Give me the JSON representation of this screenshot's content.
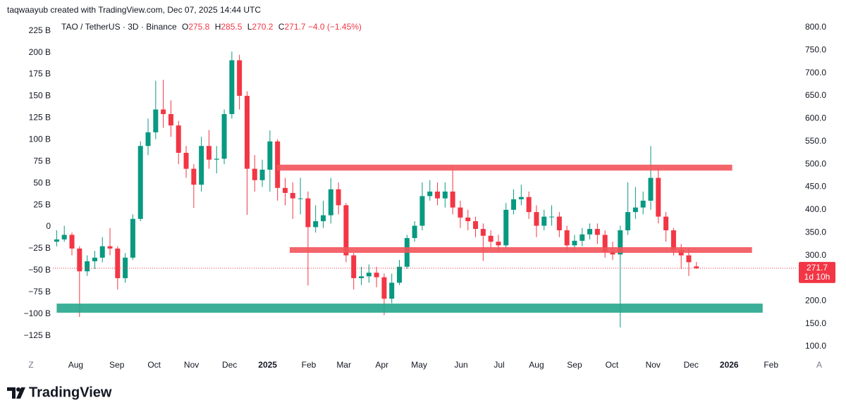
{
  "header": {
    "credit": "taqwaayub created with TradingView.com, Dec 07, 2025 14:44 UTC"
  },
  "chart_data": {
    "type": "candlestick",
    "legend": {
      "symbol": "TAO / TetherUS · 3D · Binance",
      "labels": [
        "O",
        "H",
        "L",
        "C"
      ],
      "values": [
        275.8,
        285.5,
        270.2,
        271.7
      ],
      "change": -4.0,
      "change_label": "−4.0",
      "change_pct": -1.45,
      "change_pct_label": "(−1.45%)"
    },
    "countdown": "1d 10h",
    "up_color": "#089981",
    "down_color": "#f23645",
    "open": [
      330,
      335,
      345,
      315,
      265,
      287,
      295,
      320,
      315,
      250,
      295,
      380,
      540,
      570,
      620,
      610,
      585,
      525,
      490,
      455,
      540,
      510,
      512,
      610,
      728,
      650,
      490,
      465,
      488,
      550,
      448,
      437,
      425,
      425,
      362,
      375,
      388,
      445,
      410,
      300,
      250,
      254,
      262,
      252,
      205,
      240,
      275,
      338,
      365,
      430,
      440,
      425,
      440,
      405,
      383,
      375,
      358,
      343,
      330,
      322,
      400,
      423,
      428,
      395,
      365,
      385,
      385,
      355,
      322,
      332,
      346,
      358,
      345,
      308,
      302,
      355,
      395,
      405,
      420,
      470,
      385,
      355,
      312,
      300,
      275.8
    ],
    "high": [
      355,
      365,
      350,
      320,
      300,
      310,
      340,
      360,
      320,
      305,
      390,
      550,
      600,
      683,
      685,
      640,
      595,
      540,
      500,
      560,
      575,
      540,
      620,
      747,
      740,
      660,
      520,
      510,
      574,
      555,
      470,
      460,
      470,
      440,
      410,
      420,
      470,
      460,
      415,
      305,
      275,
      280,
      275,
      260,
      260,
      290,
      345,
      375,
      460,
      465,
      460,
      460,
      497,
      420,
      400,
      385,
      370,
      355,
      345,
      415,
      445,
      455,
      440,
      410,
      400,
      410,
      395,
      365,
      345,
      360,
      370,
      370,
      355,
      330,
      365,
      460,
      450,
      440,
      540,
      495,
      395,
      360,
      325,
      315,
      285.5
    ],
    "low": [
      320,
      330,
      300,
      165,
      255,
      270,
      285,
      300,
      225,
      240,
      290,
      375,
      520,
      555,
      580,
      560,
      500,
      470,
      404,
      440,
      490,
      480,
      500,
      600,
      620,
      389,
      440,
      450,
      440,
      420,
      410,
      380,
      390,
      234,
      350,
      360,
      370,
      390,
      285,
      225,
      235,
      240,
      230,
      169,
      195,
      235,
      270,
      330,
      355,
      420,
      410,
      405,
      390,
      360,
      355,
      340,
      288,
      315,
      310,
      315,
      390,
      410,
      380,
      340,
      355,
      365,
      340,
      310,
      310,
      320,
      335,
      325,
      295,
      290,
      142,
      345,
      380,
      390,
      400,
      370,
      330,
      300,
      270,
      255,
      270.2
    ],
    "close": [
      335,
      345,
      315,
      265,
      287,
      295,
      320,
      315,
      250,
      295,
      380,
      540,
      570,
      620,
      610,
      585,
      525,
      490,
      455,
      540,
      510,
      512,
      610,
      728,
      650,
      490,
      465,
      488,
      550,
      448,
      437,
      425,
      425,
      362,
      375,
      388,
      445,
      410,
      300,
      250,
      254,
      262,
      252,
      205,
      240,
      275,
      338,
      365,
      430,
      440,
      425,
      440,
      405,
      383,
      375,
      358,
      343,
      330,
      322,
      400,
      423,
      428,
      395,
      365,
      385,
      385,
      355,
      322,
      332,
      346,
      358,
      345,
      308,
      302,
      355,
      395,
      405,
      420,
      470,
      385,
      355,
      312,
      300,
      285,
      271.7
    ],
    "xlim": [
      -0.5,
      96.7
    ],
    "xticks": [
      {
        "value": 2.5,
        "label": "Aug"
      },
      {
        "value": 7.9,
        "label": "Sep"
      },
      {
        "value": 12.8,
        "label": "Oct"
      },
      {
        "value": 17.7,
        "label": "Nov"
      },
      {
        "value": 22.7,
        "label": "Dec"
      },
      {
        "value": 27.7,
        "label": "2025"
      },
      {
        "value": 33.1,
        "label": "Feb"
      },
      {
        "value": 37.7,
        "label": "Mar"
      },
      {
        "value": 42.7,
        "label": "Apr"
      },
      {
        "value": 47.6,
        "label": "May"
      },
      {
        "value": 53.1,
        "label": "Jun"
      },
      {
        "value": 58.1,
        "label": "Jul"
      },
      {
        "value": 63.0,
        "label": "Aug"
      },
      {
        "value": 68.0,
        "label": "Sep"
      },
      {
        "value": 72.9,
        "label": "Oct"
      },
      {
        "value": 78.3,
        "label": "Nov"
      },
      {
        "value": 83.3,
        "label": "Dec"
      },
      {
        "value": 88.3,
        "label": "2026"
      },
      {
        "value": 93.8,
        "label": "Feb"
      }
    ],
    "ylim": [
      80,
      821.6
    ],
    "yticks": [
      {
        "value": 800,
        "label": "800.0"
      },
      {
        "value": 750,
        "label": "750.0"
      },
      {
        "value": 700,
        "label": "700.0"
      },
      {
        "value": 650,
        "label": "650.0"
      },
      {
        "value": 600,
        "label": "600.0"
      },
      {
        "value": 550,
        "label": "550.0"
      },
      {
        "value": 500,
        "label": "500.0"
      },
      {
        "value": 450,
        "label": "450.0"
      },
      {
        "value": 400,
        "label": "400.0"
      },
      {
        "value": 350,
        "label": "350.0"
      },
      {
        "value": 300,
        "label": "300.0"
      },
      {
        "value": 250,
        "label": "250.0"
      },
      {
        "value": 200,
        "label": "200.0"
      },
      {
        "value": 150,
        "label": "150.0"
      },
      {
        "value": 100,
        "label": "100.0"
      }
    ],
    "y2lim": [
      -147.9,
      240.1
    ],
    "y2ticks": [
      {
        "value": 225,
        "label": "225 B"
      },
      {
        "value": 200,
        "label": "200 B"
      },
      {
        "value": 175,
        "label": "175 B"
      },
      {
        "value": 150,
        "label": "150 B"
      },
      {
        "value": 125,
        "label": "125 B"
      },
      {
        "value": 100,
        "label": "100 B"
      },
      {
        "value": 75,
        "label": "75 B"
      },
      {
        "value": 50,
        "label": "50 B"
      },
      {
        "value": 25,
        "label": "25 B"
      },
      0,
      {
        "value": -25,
        "label": "−25 B"
      },
      {
        "value": -50,
        "label": "−50 B"
      },
      {
        "value": -75,
        "label": "−75 B"
      },
      {
        "value": -100,
        "label": "−100 B"
      },
      {
        "value": -125,
        "label": "−125 B"
      }
    ],
    "zones": [
      {
        "x": [
          28.9,
          88.7
        ],
        "y": [
          486,
          499
        ],
        "color": "#f2545b"
      },
      {
        "x": [
          30.6,
          91.3
        ],
        "y": [
          305.5,
          318
        ],
        "color": "#f2545b"
      },
      {
        "x": [
          0,
          92.7
        ],
        "y": [
          174.2,
          194.2
        ],
        "color": "#26a68c"
      }
    ]
  },
  "ui": {
    "left_button": "Z",
    "right_button": "A",
    "logo": "TradingView"
  }
}
